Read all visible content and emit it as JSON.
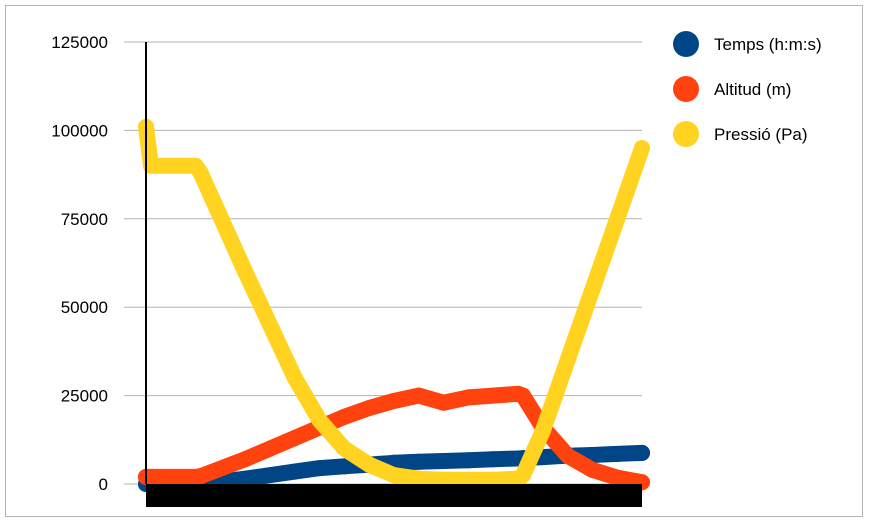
{
  "chart_data": {
    "type": "line",
    "title": "",
    "xlabel": "",
    "ylabel": "",
    "ylim": [
      0,
      125000
    ],
    "yticks": [
      "0",
      "25000",
      "50000",
      "75000",
      "100000",
      "125000"
    ],
    "grid": true,
    "legend_position": "right",
    "x": [
      0,
      0.01,
      0.1,
      0.11,
      0.2,
      0.3,
      0.35,
      0.4,
      0.45,
      0.5,
      0.55,
      0.6,
      0.65,
      0.7,
      0.75,
      0.76,
      0.8,
      0.85,
      0.9,
      0.95,
      1.0
    ],
    "series": [
      {
        "name": "Temps (h:m:s)",
        "color": "#004586",
        "values": [
          0,
          0,
          0,
          0,
          1500,
          3500,
          4500,
          5000,
          5500,
          6000,
          6300,
          6500,
          6700,
          7000,
          7200,
          7300,
          7600,
          8000,
          8200,
          8500,
          8800
        ]
      },
      {
        "name": "Altitud (m)",
        "color": "#ff420e",
        "values": [
          2000,
          2000,
          2000,
          2200,
          7000,
          13000,
          16000,
          19000,
          21500,
          23500,
          25000,
          23000,
          24500,
          25000,
          25500,
          25000,
          16000,
          8000,
          4000,
          1800,
          500
        ]
      },
      {
        "name": "Pressió (Pa)",
        "color": "#ffd320",
        "values": [
          101000,
          90000,
          90000,
          88000,
          60000,
          30000,
          18000,
          10000,
          5500,
          2500,
          1500,
          1200,
          1200,
          1200,
          1500,
          2500,
          15000,
          35000,
          55000,
          75000,
          95000
        ]
      }
    ]
  }
}
